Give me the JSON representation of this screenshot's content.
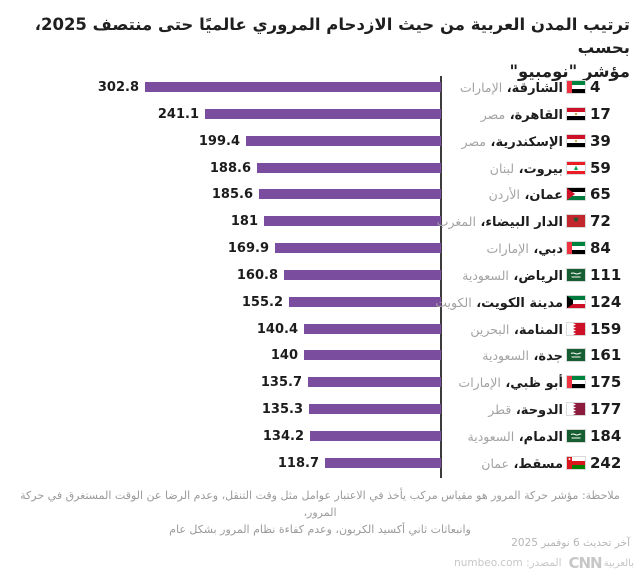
{
  "title": "ترتيب المدن العربية من حيث الازدحام المروري عالميًا حتى منتصف 2025، بحسب\nمؤشر \"نومبيو\"",
  "footnote": "ملاحظة: مؤشر حركة المرور هو مقياس مركب يأخذ في الاعتبار عوامل مثل وقت التنقل، وعدم الرضا عن الوقت المستغرق في حركة المرور،\nوانبعاثات ثاني أكسيد الكربون، وعدم كفاءة نظام المرور بشكل عام",
  "updated": "آخر تحديث 6 نوفمبر 2025",
  "source": {
    "label": "المصدر: numbeo.com",
    "logo_cnn": "CNN",
    "logo_arabic": "بالعربية"
  },
  "colors": {
    "bar": "#7b4d9e",
    "axis": "#3c3c3c",
    "text_dark": "#1c1c1c",
    "text_gray": "#a3a3a3",
    "footnote_gray": "#9a9a9a",
    "source_gray": "#c7c7c7"
  },
  "chart_data": {
    "type": "bar",
    "orientation": "horizontal-rtl",
    "title": "ترتيب المدن العربية من حيث الازدحام المروري عالميًا حتى منتصف 2025، بحسب مؤشر \"نومبيو\"",
    "xlim": [
      0,
      310
    ],
    "grid": false,
    "legend": false,
    "rows": [
      {
        "rank": "4",
        "city": "الشارقة",
        "country": "الإمارات",
        "flag": "uae",
        "value": 302.8,
        "value_label": "302.8"
      },
      {
        "rank": "17",
        "city": "القاهرة",
        "country": "مصر",
        "flag": "egypt",
        "value": 241.1,
        "value_label": "241.1"
      },
      {
        "rank": "39",
        "city": "الإسكندرية",
        "country": "مصر",
        "flag": "egypt",
        "value": 199.4,
        "value_label": "199.4"
      },
      {
        "rank": "59",
        "city": "بيروت",
        "country": "لبنان",
        "flag": "lebanon",
        "value": 188.6,
        "value_label": "188.6"
      },
      {
        "rank": "65",
        "city": "عمان",
        "country": "الأردن",
        "flag": "jordan",
        "value": 185.6,
        "value_label": "185.6"
      },
      {
        "rank": "72",
        "city": "الدار البيضاء",
        "country": "المغرب",
        "flag": "morocco",
        "value": 181,
        "value_label": "181"
      },
      {
        "rank": "84",
        "city": "دبي",
        "country": "الإمارات",
        "flag": "uae",
        "value": 169.9,
        "value_label": "169.9"
      },
      {
        "rank": "111",
        "city": "الرياض",
        "country": "السعودية",
        "flag": "saudi",
        "value": 160.8,
        "value_label": "160.8"
      },
      {
        "rank": "124",
        "city": "مدينة الكويت",
        "country": "الكويت",
        "flag": "kuwait",
        "value": 155.2,
        "value_label": "155.2"
      },
      {
        "rank": "159",
        "city": "المنامة",
        "country": "البحرين",
        "flag": "bahrain",
        "value": 140.4,
        "value_label": "140.4"
      },
      {
        "rank": "161",
        "city": "جدة",
        "country": "السعودية",
        "flag": "saudi",
        "value": 140,
        "value_label": "140"
      },
      {
        "rank": "175",
        "city": "أبو ظبي",
        "country": "الإمارات",
        "flag": "uae",
        "value": 135.7,
        "value_label": "135.7"
      },
      {
        "rank": "177",
        "city": "الدوحة",
        "country": "قطر",
        "flag": "qatar",
        "value": 135.3,
        "value_label": "135.3"
      },
      {
        "rank": "184",
        "city": "الدمام",
        "country": "السعودية",
        "flag": "saudi",
        "value": 134.2,
        "value_label": "134.2"
      },
      {
        "rank": "242",
        "city": "مسقط",
        "country": "عمان",
        "flag": "oman",
        "value": 118.7,
        "value_label": "118.7"
      }
    ]
  }
}
